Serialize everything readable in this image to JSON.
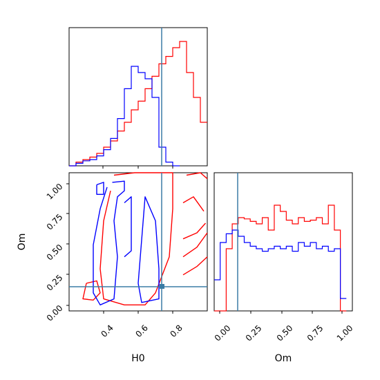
{
  "figure": {
    "type": "corner-plot"
  },
  "colors": {
    "red": "#ff0000",
    "blue": "#0000ff",
    "truth": "#3a7ca5",
    "axes": "#000000"
  },
  "truth": {
    "H0": 0.74,
    "Om": 0.14
  },
  "chart_data": [
    {
      "type": "histogram",
      "panel": "H0 marginal",
      "x_range": [
        0.2,
        1.0
      ],
      "series": [
        {
          "color": "red",
          "bins": [
            [
              0.2,
              0.0
            ],
            [
              0.24,
              0.03
            ],
            [
              0.28,
              0.05
            ],
            [
              0.32,
              0.07
            ],
            [
              0.36,
              0.1
            ],
            [
              0.4,
              0.15
            ],
            [
              0.44,
              0.2
            ],
            [
              0.48,
              0.28
            ],
            [
              0.52,
              0.35
            ],
            [
              0.56,
              0.45
            ],
            [
              0.6,
              0.52
            ],
            [
              0.64,
              0.62
            ],
            [
              0.68,
              0.72
            ],
            [
              0.72,
              0.82
            ],
            [
              0.76,
              0.88
            ],
            [
              0.8,
              0.95
            ],
            [
              0.84,
              1.0
            ],
            [
              0.88,
              0.75
            ],
            [
              0.92,
              0.55
            ],
            [
              0.96,
              0.35
            ],
            [
              1.0,
              0.35
            ]
          ]
        },
        {
          "color": "blue",
          "bins": [
            [
              0.2,
              0.0
            ],
            [
              0.24,
              0.02
            ],
            [
              0.28,
              0.04
            ],
            [
              0.32,
              0.05
            ],
            [
              0.36,
              0.08
            ],
            [
              0.4,
              0.13
            ],
            [
              0.44,
              0.22
            ],
            [
              0.48,
              0.38
            ],
            [
              0.52,
              0.62
            ],
            [
              0.56,
              0.8
            ],
            [
              0.6,
              0.75
            ],
            [
              0.64,
              0.7
            ],
            [
              0.68,
              0.55
            ],
            [
              0.72,
              0.15
            ],
            [
              0.76,
              0.03
            ],
            [
              0.8,
              0.0
            ]
          ]
        }
      ]
    },
    {
      "type": "contour",
      "panel": "H0 vs Om",
      "xlabel": "H0",
      "ylabel": "Om",
      "x_range": [
        0.2,
        1.0
      ],
      "y_range": [
        -0.05,
        1.1
      ],
      "x_ticks": [
        "0.4",
        "0.6",
        "0.8"
      ],
      "y_ticks": [
        "0.00",
        "0.25",
        "0.50",
        "0.75",
        "1.00"
      ],
      "red_contours": [
        [
          [
            0.46,
            1.08
          ],
          [
            0.58,
            1.1
          ],
          [
            0.74,
            1.1
          ],
          [
            0.8,
            1.1
          ],
          [
            0.8,
            0.8
          ],
          [
            0.78,
            0.4
          ],
          [
            0.7,
            0.1
          ],
          [
            0.64,
            0.0
          ],
          [
            0.52,
            0.0
          ],
          [
            0.4,
            0.05
          ],
          [
            0.38,
            0.3
          ],
          [
            0.4,
            0.7
          ],
          [
            0.44,
            0.95
          ]
        ],
        [
          [
            0.88,
            1.08
          ],
          [
            0.96,
            1.1
          ],
          [
            1.0,
            1.05
          ]
        ],
        [
          [
            0.86,
            0.85
          ],
          [
            0.92,
            0.9
          ],
          [
            0.98,
            0.78
          ]
        ],
        [
          [
            0.86,
            0.55
          ],
          [
            0.94,
            0.6
          ],
          [
            0.99,
            0.68
          ]
        ],
        [
          [
            0.86,
            0.4
          ],
          [
            0.94,
            0.48
          ],
          [
            1.0,
            0.6
          ]
        ],
        [
          [
            0.86,
            0.25
          ],
          [
            0.94,
            0.32
          ],
          [
            1.0,
            0.4
          ]
        ],
        [
          [
            0.3,
            0.18
          ],
          [
            0.36,
            0.2
          ],
          [
            0.38,
            0.1
          ],
          [
            0.34,
            0.04
          ],
          [
            0.28,
            0.05
          ],
          [
            0.3,
            0.18
          ]
        ]
      ],
      "blue_contours": [
        [
          [
            0.45,
            1.02
          ],
          [
            0.52,
            1.03
          ],
          [
            0.52,
            0.95
          ],
          [
            0.48,
            0.9
          ],
          [
            0.46,
            0.7
          ],
          [
            0.48,
            0.4
          ],
          [
            0.46,
            0.05
          ],
          [
            0.38,
            0.0
          ],
          [
            0.34,
            0.1
          ],
          [
            0.34,
            0.5
          ],
          [
            0.38,
            0.8
          ],
          [
            0.42,
            0.98
          ]
        ],
        [
          [
            0.52,
            0.85
          ],
          [
            0.56,
            0.9
          ],
          [
            0.56,
            0.45
          ],
          [
            0.52,
            0.4
          ]
        ],
        [
          [
            0.6,
            0.18
          ],
          [
            0.64,
            0.9
          ],
          [
            0.7,
            0.7
          ],
          [
            0.72,
            0.3
          ],
          [
            0.72,
            0.05
          ],
          [
            0.62,
            0.02
          ],
          [
            0.6,
            0.18
          ]
        ],
        [
          [
            0.36,
            1.0
          ],
          [
            0.4,
            1.02
          ],
          [
            0.4,
            0.92
          ],
          [
            0.36,
            0.92
          ],
          [
            0.36,
            1.0
          ]
        ]
      ]
    },
    {
      "type": "histogram",
      "panel": "Om marginal",
      "xlabel": "Om",
      "x_range": [
        -0.05,
        1.1
      ],
      "x_ticks": [
        "0.00",
        "0.25",
        "0.50",
        "0.75",
        "1.00"
      ],
      "series": [
        {
          "color": "red",
          "bins": [
            [
              -0.05,
              0.0
            ],
            [
              0.0,
              0.0
            ],
            [
              0.05,
              0.5
            ],
            [
              0.1,
              0.7
            ],
            [
              0.15,
              0.75
            ],
            [
              0.2,
              0.74
            ],
            [
              0.25,
              0.72
            ],
            [
              0.3,
              0.7
            ],
            [
              0.35,
              0.75
            ],
            [
              0.4,
              0.65
            ],
            [
              0.45,
              0.85
            ],
            [
              0.5,
              0.8
            ],
            [
              0.55,
              0.73
            ],
            [
              0.6,
              0.7
            ],
            [
              0.65,
              0.75
            ],
            [
              0.7,
              0.72
            ],
            [
              0.75,
              0.73
            ],
            [
              0.8,
              0.75
            ],
            [
              0.85,
              0.7
            ],
            [
              0.9,
              0.85
            ],
            [
              0.95,
              0.65
            ],
            [
              1.0,
              0.0
            ]
          ]
        },
        {
          "color": "blue",
          "bins": [
            [
              -0.05,
              0.25
            ],
            [
              0.0,
              0.55
            ],
            [
              0.05,
              0.62
            ],
            [
              0.1,
              0.65
            ],
            [
              0.15,
              0.6
            ],
            [
              0.2,
              0.55
            ],
            [
              0.25,
              0.52
            ],
            [
              0.3,
              0.5
            ],
            [
              0.35,
              0.48
            ],
            [
              0.4,
              0.5
            ],
            [
              0.45,
              0.52
            ],
            [
              0.5,
              0.5
            ],
            [
              0.55,
              0.52
            ],
            [
              0.6,
              0.48
            ],
            [
              0.65,
              0.55
            ],
            [
              0.7,
              0.52
            ],
            [
              0.75,
              0.55
            ],
            [
              0.8,
              0.5
            ],
            [
              0.85,
              0.52
            ],
            [
              0.9,
              0.48
            ],
            [
              0.95,
              0.5
            ],
            [
              1.0,
              0.1
            ]
          ]
        }
      ]
    }
  ]
}
